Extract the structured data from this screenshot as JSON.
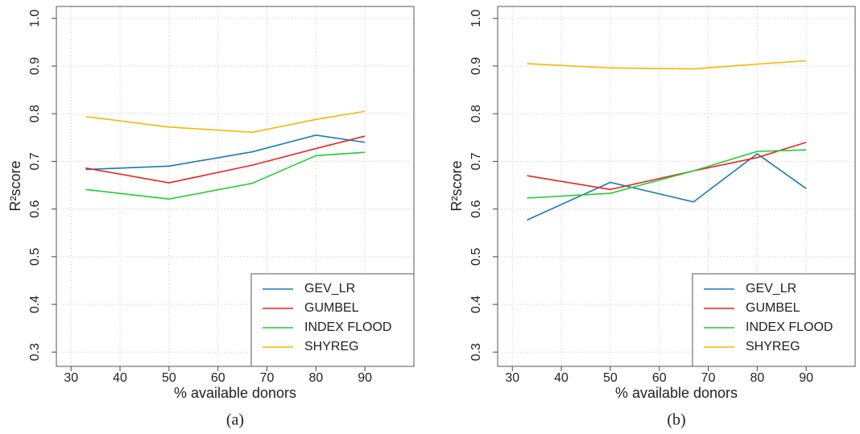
{
  "chart_data": [
    {
      "type": "line",
      "xlabel": "% available donors",
      "ylabel": "R²score",
      "panel_label": "(a)",
      "x": [
        33,
        50,
        67,
        80,
        90
      ],
      "xlim": [
        27,
        100
      ],
      "ylim": [
        0.27,
        1.025
      ],
      "xticks": [
        30,
        40,
        50,
        60,
        70,
        80,
        90
      ],
      "yticks": [
        0.3,
        0.4,
        0.5,
        0.6,
        0.7,
        0.8,
        0.9,
        {
          "value": 1,
          "label": "1.0"
        }
      ],
      "grid": true,
      "legend": "lower right",
      "series": [
        {
          "name": "GEV_LR",
          "color": "#1a7ab5",
          "values": [
            0.683,
            0.69,
            0.72,
            0.755,
            0.74
          ]
        },
        {
          "name": "GUMBEL",
          "color": "#e8261f",
          "values": [
            0.686,
            0.655,
            0.692,
            0.727,
            0.753
          ]
        },
        {
          "name": "INDEX FLOOD",
          "color": "#22cc33",
          "values": [
            0.641,
            0.621,
            0.654,
            0.712,
            0.719
          ]
        },
        {
          "name": "SHYREG",
          "color": "#f5b800",
          "values": [
            0.794,
            0.772,
            0.761,
            0.788,
            0.805
          ]
        }
      ]
    },
    {
      "type": "line",
      "xlabel": "% available donors",
      "ylabel": "R²score",
      "panel_label": "(b)",
      "x": [
        33,
        50,
        67,
        80,
        90
      ],
      "xlim": [
        27,
        100
      ],
      "ylim": [
        0.27,
        1.025
      ],
      "xticks": [
        30,
        40,
        50,
        60,
        70,
        80,
        90
      ],
      "yticks": [
        0.3,
        0.4,
        0.5,
        0.6,
        0.7,
        0.8,
        0.9,
        {
          "value": 1,
          "label": "1.0"
        }
      ],
      "grid": true,
      "legend": "lower right",
      "series": [
        {
          "name": "GEV_LR",
          "color": "#1a7ab5",
          "values": [
            0.577,
            0.656,
            0.615,
            0.716,
            0.643
          ]
        },
        {
          "name": "GUMBEL",
          "color": "#e8261f",
          "values": [
            0.67,
            0.641,
            0.68,
            0.708,
            0.74
          ]
        },
        {
          "name": "INDEX FLOOD",
          "color": "#22cc33",
          "values": [
            0.623,
            0.633,
            0.68,
            0.721,
            0.724
          ]
        },
        {
          "name": "SHYREG",
          "color": "#f5b800",
          "values": [
            0.905,
            0.896,
            0.894,
            0.904,
            0.911
          ]
        }
      ]
    }
  ]
}
